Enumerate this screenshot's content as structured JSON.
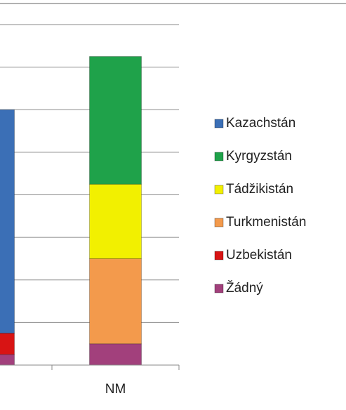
{
  "chart_data": {
    "type": "stacked_bar",
    "categories": [
      null,
      "NM"
    ],
    "series": [
      {
        "name": "Kazachstán",
        "color": "#3b6fb6",
        "values": [
          5.25,
          0
        ]
      },
      {
        "name": "Kyrgyzstán",
        "color": "#1fa24a",
        "values": [
          0,
          3.0
        ]
      },
      {
        "name": "Tádžikistán",
        "color": "#f2f000",
        "values": [
          0,
          1.75
        ]
      },
      {
        "name": "Turkmenistán",
        "color": "#f39a4c",
        "values": [
          0,
          2.0
        ]
      },
      {
        "name": "Uzbekistán",
        "color": "#d81414",
        "values": [
          0.5,
          0
        ]
      },
      {
        "name": "Žádný",
        "color": "#a2407c",
        "values": [
          0.25,
          0.5
        ]
      }
    ],
    "ylim": [
      0,
      8
    ],
    "yticks": [
      0,
      1,
      2,
      3,
      4,
      5,
      6,
      7,
      8
    ],
    "grid": true,
    "legend": "right"
  }
}
